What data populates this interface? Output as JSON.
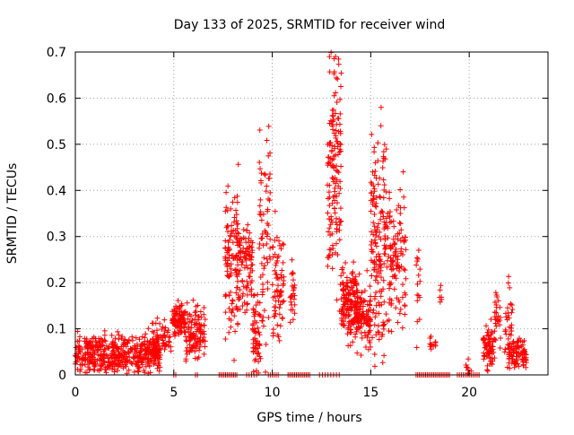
{
  "chart_data": {
    "type": "scatter",
    "title": "Day 133 of 2025, SRMTID for receiver wind",
    "xlabel": "GPS time / hours",
    "ylabel": "SRMTID / TECUs",
    "xlim": [
      0,
      24
    ],
    "ylim": [
      0,
      0.7
    ],
    "x_ticks": [
      0,
      5,
      10,
      15,
      20
    ],
    "x_tick_labels": [
      "0",
      "5",
      "10",
      "15",
      "20"
    ],
    "y_ticks": [
      0,
      0.1,
      0.2,
      0.3,
      0.4,
      0.5,
      0.6,
      0.7
    ],
    "y_tick_labels": [
      "0",
      "0.1",
      "0.2",
      "0.3",
      "0.4",
      "0.5",
      "0.6",
      "0.7"
    ],
    "grid": true,
    "marker": "plus",
    "series_color": "#ff0000",
    "segments": [
      {
        "x0": 0.0,
        "x1": 4.3,
        "center": 0.045,
        "spread": 0.035,
        "n": 480
      },
      {
        "x0": 3.9,
        "x1": 4.9,
        "center": 0.075,
        "spread": 0.035,
        "n": 70
      },
      {
        "x0": 4.9,
        "x1": 5.6,
        "center": 0.12,
        "spread": 0.03,
        "n": 90
      },
      {
        "x0": 5.6,
        "x1": 6.6,
        "center": 0.09,
        "spread": 0.045,
        "n": 110
      },
      {
        "x0": 7.6,
        "x1": 8.3,
        "center": 0.24,
        "spread": 0.13,
        "n": 120
      },
      {
        "x0": 8.3,
        "x1": 9.0,
        "center": 0.24,
        "spread": 0.08,
        "n": 90
      },
      {
        "x0": 9.0,
        "x1": 9.4,
        "center": 0.09,
        "spread": 0.08,
        "n": 60
      },
      {
        "x0": 9.3,
        "x1": 9.9,
        "center": 0.3,
        "spread": 0.2,
        "n": 70
      },
      {
        "x0": 10.0,
        "x1": 10.6,
        "center": 0.2,
        "spread": 0.1,
        "n": 70
      },
      {
        "x0": 10.9,
        "x1": 11.2,
        "center": 0.18,
        "spread": 0.07,
        "n": 25
      },
      {
        "x0": 12.8,
        "x1": 13.5,
        "center": 0.45,
        "spread": 0.22,
        "n": 150
      },
      {
        "x0": 13.5,
        "x1": 14.3,
        "center": 0.16,
        "spread": 0.07,
        "n": 160
      },
      {
        "x0": 14.3,
        "x1": 15.0,
        "center": 0.13,
        "spread": 0.06,
        "n": 110
      },
      {
        "x0": 15.0,
        "x1": 15.8,
        "center": 0.3,
        "spread": 0.2,
        "n": 160
      },
      {
        "x0": 15.8,
        "x1": 16.8,
        "center": 0.24,
        "spread": 0.14,
        "n": 120
      },
      {
        "x0": 17.3,
        "x1": 17.5,
        "center": 0.18,
        "spread": 0.08,
        "n": 16
      },
      {
        "x0": 18.0,
        "x1": 18.3,
        "center": 0.07,
        "spread": 0.012,
        "n": 12
      },
      {
        "x0": 18.5,
        "x1": 18.6,
        "center": 0.18,
        "spread": 0.06,
        "n": 6
      },
      {
        "x0": 19.8,
        "x1": 20.1,
        "center": 0.015,
        "spread": 0.012,
        "n": 8
      },
      {
        "x0": 20.7,
        "x1": 21.3,
        "center": 0.055,
        "spread": 0.04,
        "n": 70
      },
      {
        "x0": 21.3,
        "x1": 21.6,
        "center": 0.13,
        "spread": 0.05,
        "n": 25
      },
      {
        "x0": 21.8,
        "x1": 22.2,
        "center": 0.12,
        "spread": 0.08,
        "n": 35
      },
      {
        "x0": 22.0,
        "x1": 22.9,
        "center": 0.045,
        "spread": 0.03,
        "n": 90
      }
    ],
    "zero_markers": [
      {
        "x0": 5.0,
        "x1": 5.1,
        "n": 2
      },
      {
        "x0": 6.1,
        "x1": 6.2,
        "n": 2
      },
      {
        "x0": 7.3,
        "x1": 8.2,
        "n": 12
      },
      {
        "x0": 8.7,
        "x1": 9.2,
        "n": 5
      },
      {
        "x0": 9.8,
        "x1": 10.3,
        "n": 6
      },
      {
        "x0": 10.8,
        "x1": 11.9,
        "n": 14
      },
      {
        "x0": 12.4,
        "x1": 13.4,
        "n": 8
      },
      {
        "x0": 17.3,
        "x1": 19.0,
        "n": 22
      },
      {
        "x0": 19.4,
        "x1": 20.5,
        "n": 12
      }
    ]
  }
}
